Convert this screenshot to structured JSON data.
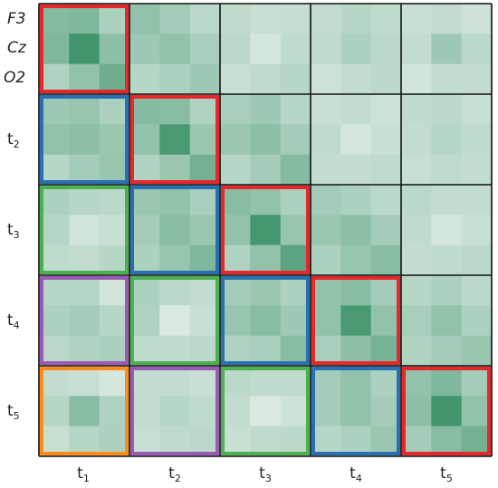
{
  "channels": [
    "F3",
    "Cz",
    "O2"
  ],
  "time_labels": [
    {
      "base": "t",
      "sub": "1"
    },
    {
      "base": "t",
      "sub": "2"
    },
    {
      "base": "t",
      "sub": "3"
    },
    {
      "base": "t",
      "sub": "4"
    },
    {
      "base": "t",
      "sub": "5"
    }
  ],
  "colors": {
    "lag_0": "#e8272d",
    "lag_1": "#2a6fb3",
    "lag_2": "#4caf50",
    "lag_3": "#9b59b6",
    "lag_4": "#ff8c1a",
    "grid": "#111111",
    "cell_low": "#e3efe8",
    "cell_high": "#2e8b5e"
  },
  "matrix": [
    [
      0.52,
      0.55,
      0.3,
      0.45,
      0.35,
      0.22,
      0.2,
      0.15,
      0.17,
      0.18,
      0.25,
      0.2,
      0.15,
      0.18,
      0.12
    ],
    [
      0.55,
      0.9,
      0.48,
      0.38,
      0.45,
      0.32,
      0.22,
      0.08,
      0.2,
      0.2,
      0.3,
      0.22,
      0.18,
      0.38,
      0.22
    ],
    [
      0.28,
      0.45,
      0.65,
      0.25,
      0.3,
      0.38,
      0.15,
      0.2,
      0.25,
      0.12,
      0.18,
      0.22,
      0.1,
      0.18,
      0.18
    ],
    [
      0.38,
      0.42,
      0.3,
      0.52,
      0.5,
      0.28,
      0.32,
      0.38,
      0.25,
      0.15,
      0.18,
      0.12,
      0.2,
      0.22,
      0.15
    ],
    [
      0.45,
      0.48,
      0.4,
      0.45,
      0.85,
      0.4,
      0.4,
      0.48,
      0.35,
      0.2,
      0.08,
      0.15,
      0.18,
      0.25,
      0.2
    ],
    [
      0.25,
      0.35,
      0.42,
      0.28,
      0.4,
      0.62,
      0.25,
      0.35,
      0.52,
      0.18,
      0.18,
      0.2,
      0.15,
      0.2,
      0.18
    ],
    [
      0.3,
      0.25,
      0.22,
      0.4,
      0.45,
      0.32,
      0.5,
      0.45,
      0.3,
      0.35,
      0.3,
      0.22,
      0.22,
      0.18,
      0.18
    ],
    [
      0.25,
      0.1,
      0.15,
      0.35,
      0.5,
      0.4,
      0.45,
      0.88,
      0.42,
      0.4,
      0.48,
      0.35,
      0.2,
      0.08,
      0.15
    ],
    [
      0.2,
      0.18,
      0.25,
      0.3,
      0.42,
      0.55,
      0.28,
      0.45,
      0.75,
      0.3,
      0.42,
      0.5,
      0.18,
      0.2,
      0.22
    ],
    [
      0.25,
      0.25,
      0.1,
      0.3,
      0.22,
      0.18,
      0.35,
      0.4,
      0.3,
      0.45,
      0.5,
      0.35,
      0.25,
      0.3,
      0.22
    ],
    [
      0.3,
      0.35,
      0.25,
      0.28,
      0.05,
      0.15,
      0.42,
      0.5,
      0.38,
      0.45,
      0.85,
      0.45,
      0.32,
      0.45,
      0.3
    ],
    [
      0.22,
      0.28,
      0.32,
      0.2,
      0.2,
      0.22,
      0.28,
      0.32,
      0.5,
      0.32,
      0.48,
      0.6,
      0.28,
      0.35,
      0.42
    ],
    [
      0.18,
      0.15,
      0.08,
      0.18,
      0.18,
      0.15,
      0.22,
      0.2,
      0.2,
      0.35,
      0.45,
      0.3,
      0.45,
      0.55,
      0.35
    ],
    [
      0.25,
      0.5,
      0.28,
      0.18,
      0.25,
      0.2,
      0.18,
      0.05,
      0.12,
      0.35,
      0.45,
      0.35,
      0.48,
      0.9,
      0.45
    ],
    [
      0.15,
      0.25,
      0.3,
      0.15,
      0.2,
      0.22,
      0.15,
      0.2,
      0.22,
      0.25,
      0.3,
      0.4,
      0.35,
      0.5,
      0.62
    ]
  ],
  "highlights": [
    {
      "block_row": 0,
      "block_col": 0,
      "lag": "lag_0"
    },
    {
      "block_row": 1,
      "block_col": 1,
      "lag": "lag_0"
    },
    {
      "block_row": 2,
      "block_col": 2,
      "lag": "lag_0"
    },
    {
      "block_row": 3,
      "block_col": 3,
      "lag": "lag_0"
    },
    {
      "block_row": 4,
      "block_col": 4,
      "lag": "lag_0"
    },
    {
      "block_row": 1,
      "block_col": 0,
      "lag": "lag_1"
    },
    {
      "block_row": 2,
      "block_col": 1,
      "lag": "lag_1"
    },
    {
      "block_row": 3,
      "block_col": 2,
      "lag": "lag_1"
    },
    {
      "block_row": 4,
      "block_col": 3,
      "lag": "lag_1"
    },
    {
      "block_row": 2,
      "block_col": 0,
      "lag": "lag_2"
    },
    {
      "block_row": 3,
      "block_col": 1,
      "lag": "lag_2"
    },
    {
      "block_row": 4,
      "block_col": 2,
      "lag": "lag_2"
    },
    {
      "block_row": 3,
      "block_col": 0,
      "lag": "lag_3"
    },
    {
      "block_row": 4,
      "block_col": 1,
      "lag": "lag_3"
    },
    {
      "block_row": 4,
      "block_col": 0,
      "lag": "lag_4"
    }
  ]
}
